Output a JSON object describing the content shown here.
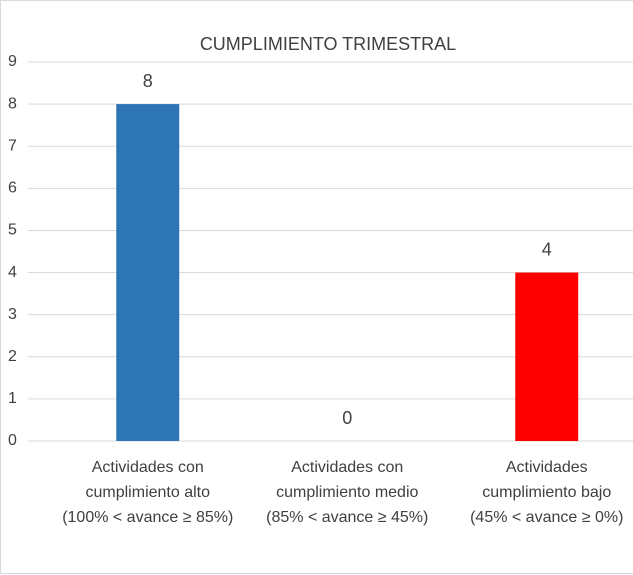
{
  "chart_data": {
    "type": "bar",
    "title": "CUMPLIMIENTO TRIMESTRAL",
    "categories": [
      [
        "Actividades con",
        "cumplimiento alto",
        "(100% < avance ≥ 85%)"
      ],
      [
        "Actividades con",
        "cumplimiento medio",
        "(85% < avance ≥ 45%)"
      ],
      [
        "Actividades",
        "cumplimiento bajo",
        "(45% < avance ≥ 0%)"
      ]
    ],
    "values": [
      8,
      0,
      4
    ],
    "colors": [
      "#2e75b6",
      "#2e75b6",
      "#ff0000"
    ],
    "ylim": [
      0,
      9
    ],
    "yticks": [
      0,
      1,
      2,
      3,
      4,
      5,
      6,
      7,
      8,
      9
    ],
    "grid": true
  }
}
